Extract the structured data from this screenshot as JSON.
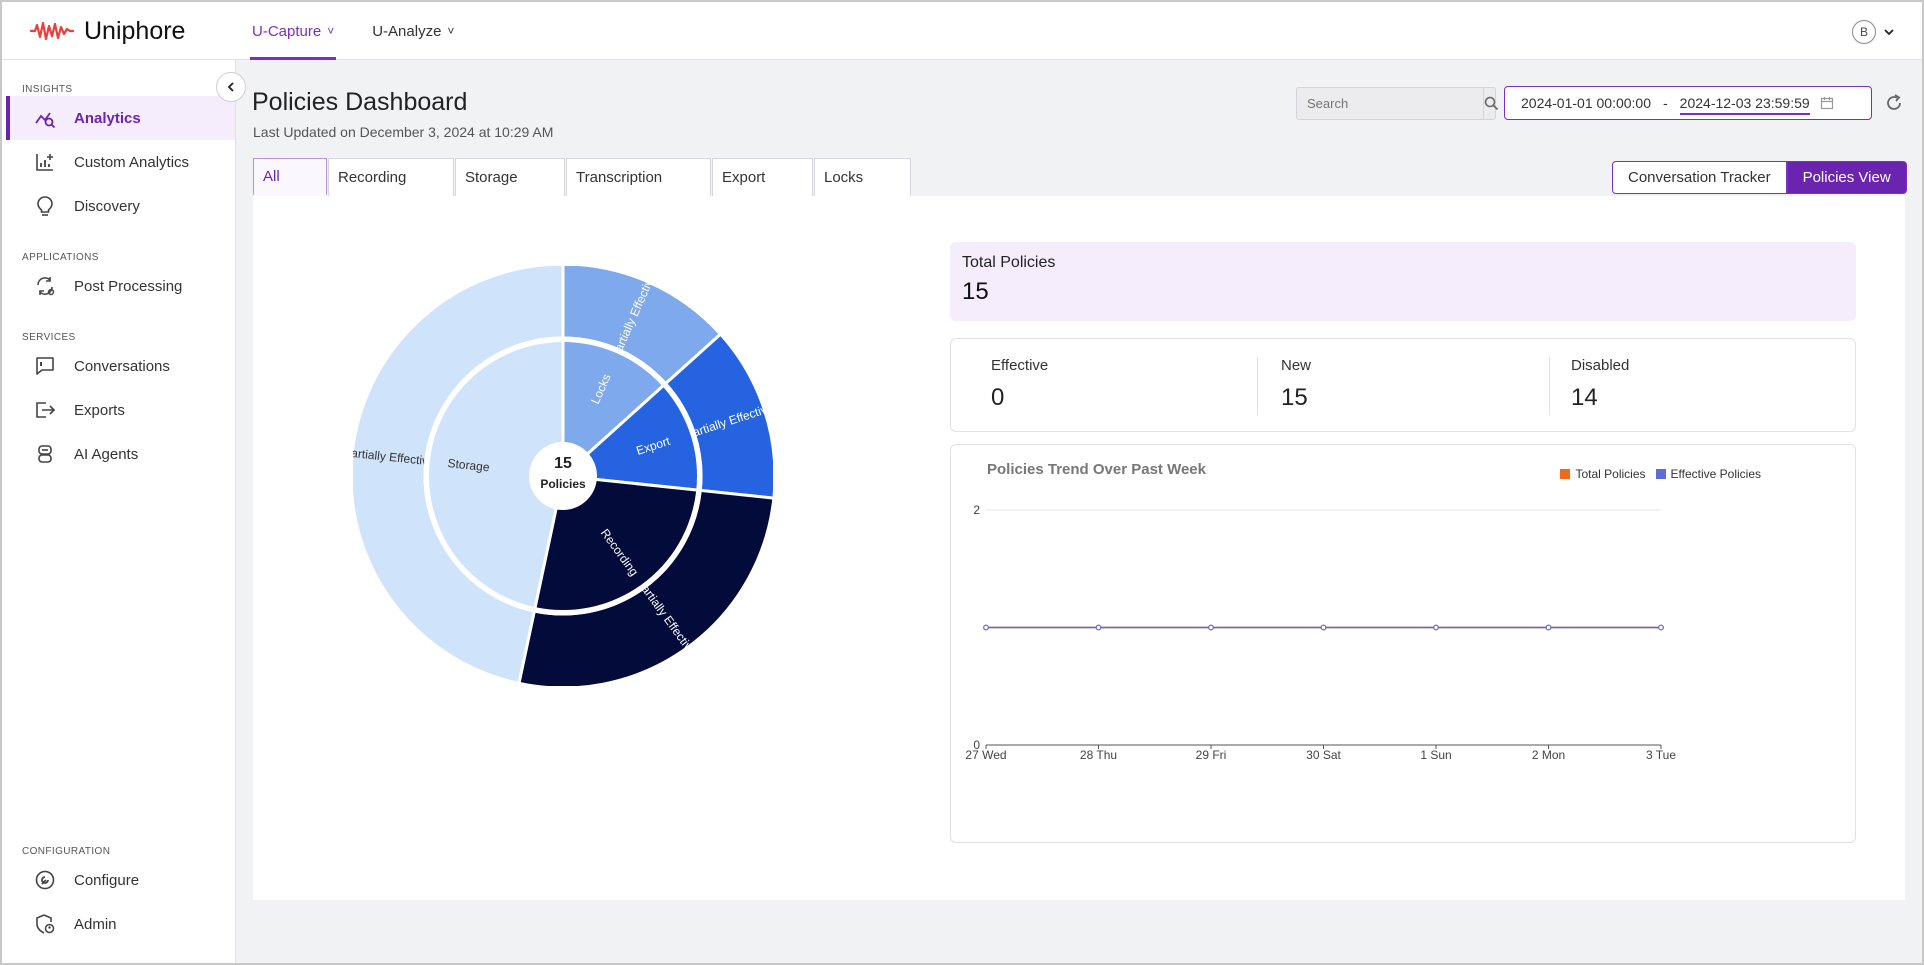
{
  "app": {
    "name": "Uniphore"
  },
  "topnav": [
    {
      "label": "U-Capture",
      "active": true
    },
    {
      "label": "U-Analyze",
      "active": false
    }
  ],
  "user": {
    "initial": "B"
  },
  "sidebar": {
    "sections": {
      "insights": "INSIGHTS",
      "applications": "APPLICATIONS",
      "services": "SERVICES",
      "configuration": "CONFIGURATION"
    },
    "items": [
      {
        "label": "Analytics",
        "icon": "analytics-icon",
        "active": true
      },
      {
        "label": "Custom Analytics",
        "icon": "custom-analytics-icon"
      },
      {
        "label": "Discovery",
        "icon": "lightbulb-icon"
      },
      {
        "label": "Post Processing",
        "icon": "post-processing-icon"
      },
      {
        "label": "Conversations",
        "icon": "conversation-icon"
      },
      {
        "label": "Exports",
        "icon": "export-icon"
      },
      {
        "label": "AI Agents",
        "icon": "ai-agent-icon"
      },
      {
        "label": "Configure",
        "icon": "wrench-icon"
      },
      {
        "label": "Admin",
        "icon": "admin-shield-icon"
      }
    ]
  },
  "header": {
    "title": "Policies Dashboard",
    "last_updated": "Last Updated on December 3, 2024 at 10:29 AM",
    "search_placeholder": "Search",
    "date_start": "2024-01-01 00:00:00",
    "date_sep": "-",
    "date_end": "2024-12-03 23:59:59"
  },
  "tabs": [
    {
      "label": "All",
      "active": true
    },
    {
      "label": "Recording"
    },
    {
      "label": "Storage"
    },
    {
      "label": "Transcription"
    },
    {
      "label": "Export"
    },
    {
      "label": "Locks"
    }
  ],
  "view_toggle": {
    "left": "Conversation Tracker",
    "right": "Policies View"
  },
  "sunburst": {
    "center_value": "15",
    "center_label": "Policies",
    "inner": [
      {
        "label": "Locks",
        "value": 2,
        "color": "#7ea9ec"
      },
      {
        "label": "Export",
        "value": 2,
        "color": "#2563e0"
      },
      {
        "label": "Recording",
        "value": 4,
        "color": "#020b3a"
      },
      {
        "label": "Storage",
        "value": 7,
        "color": "#cfe4fb"
      }
    ],
    "outer": [
      {
        "label": "Partially Effective",
        "value": 2,
        "color": "#7ea9ec"
      },
      {
        "label": "Partially Effective",
        "value": 2,
        "color": "#2563e0"
      },
      {
        "label": "Partially Effective",
        "value": 4,
        "color": "#020b3a"
      },
      {
        "label": "Partially Effective",
        "value": 7,
        "color": "#cfe4fb"
      }
    ]
  },
  "summary": {
    "total_label": "Total Policies",
    "total_value": "15",
    "effective_label": "Effective",
    "effective_value": "0",
    "new_label": "New",
    "new_value": "15",
    "disabled_label": "Disabled",
    "disabled_value": "14"
  },
  "chart_data": {
    "type": "line",
    "title": "Policies Trend Over Past Week",
    "categories": [
      "27 Wed",
      "28 Thu",
      "29 Fri",
      "30 Sat",
      "1 Sun",
      "2 Mon",
      "3 Tue"
    ],
    "series": [
      {
        "name": "Total Policies",
        "color": "#f06a1d",
        "values": [
          1,
          1,
          1,
          1,
          1,
          1,
          1
        ]
      },
      {
        "name": "Effective Policies",
        "color": "#5b6ed6",
        "values": [
          1,
          1,
          1,
          1,
          1,
          1,
          1
        ]
      }
    ],
    "yticks": [
      "0",
      "2"
    ],
    "ylim": [
      0,
      2
    ],
    "legend": "top-right"
  }
}
